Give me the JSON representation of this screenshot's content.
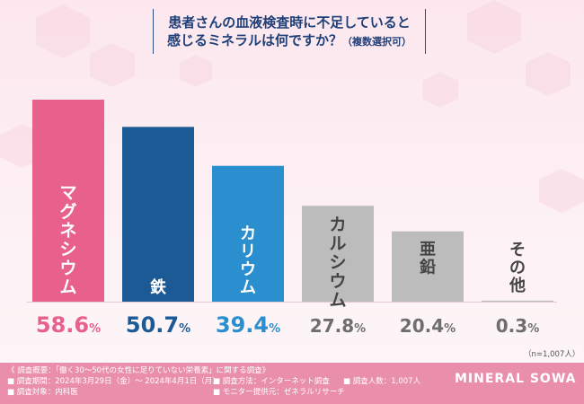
{
  "header": {
    "title_line1": "患者さんの血液検査時に不足していると",
    "title_line2_main": "感じるミネラルは何ですか？",
    "title_line2_suffix": "（複数選択可）"
  },
  "chart_data": {
    "type": "bar",
    "title": "患者さんの血液検査時に不足していると感じるミネラルは何ですか？（複数選択可）",
    "categories": [
      "マグネシウム",
      "鉄",
      "カリウム",
      "カルシウム",
      "亜鉛",
      "その他"
    ],
    "values": [
      58.6,
      50.7,
      39.4,
      27.8,
      20.4,
      0.3
    ],
    "value_labels": [
      {
        "num": "58.6",
        "unit": "%"
      },
      {
        "num": "50.7",
        "unit": "%"
      },
      {
        "num": "39.4",
        "unit": "%"
      },
      {
        "num": "27.8",
        "unit": "%"
      },
      {
        "num": "20.4",
        "unit": "%"
      },
      {
        "num": "0.3",
        "unit": "%"
      }
    ],
    "colors": [
      "#e8608c",
      "#1c5a96",
      "#2b8fcf",
      "#bcbcbc",
      "#bcbcbc",
      "#bcbcbc"
    ],
    "label_colors": [
      "#e8608c",
      "#1c5a96",
      "#2b8fcf",
      "#6e6e6e",
      "#6e6e6e",
      "#6e6e6e"
    ],
    "ylim": [
      0,
      70
    ],
    "xlabel": "",
    "ylabel": "",
    "sample_note": "（n=1,007人）"
  },
  "footer": {
    "survey_summary": "《 調査概要：「働く30～50代の女性に足りていない栄養素」に関する調査》",
    "period": "■ 調査期間：2024年3月29日（金）～ 2024年4月1日（月）",
    "target": "■ 調査対象：内科医",
    "method": "■ 調査方法：インターネット調査",
    "provider": "■ モニター提供元：ゼネラルリサーチ",
    "count": "■ 調査人数：1,007人",
    "brand": "MINERAL SOWA"
  }
}
